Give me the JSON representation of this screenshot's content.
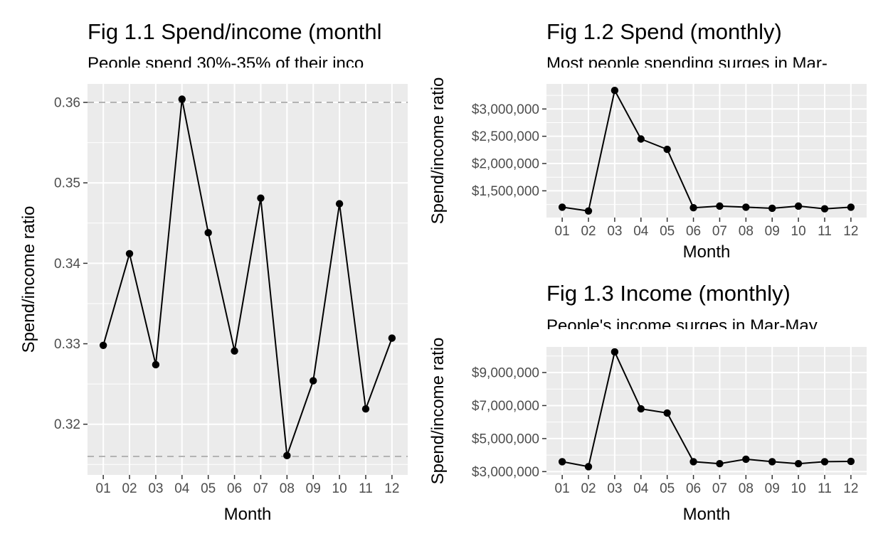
{
  "chart_data": [
    {
      "id": "fig11",
      "type": "line",
      "title": "Fig 1.1 Spend/income (monthl",
      "subtitle": "People spend 30%-35% of their inco",
      "xlabel": "Month",
      "ylabel": "Spend/income ratio",
      "categories": [
        "01",
        "02",
        "03",
        "04",
        "05",
        "06",
        "07",
        "08",
        "09",
        "10",
        "11",
        "12"
      ],
      "values": [
        0.3298,
        0.3412,
        0.3274,
        0.3604,
        0.3438,
        0.3291,
        0.3481,
        0.3161,
        0.3254,
        0.3474,
        0.3219,
        0.3307
      ],
      "ylim": [
        0.3137,
        0.3623
      ],
      "yticks": [
        0.32,
        0.33,
        0.34,
        0.35,
        0.36
      ],
      "yticklabels": [
        "0.32",
        "0.33",
        "0.34",
        "0.35",
        "0.36"
      ],
      "reference_lines": [
        0.316,
        0.36
      ],
      "grid": true,
      "legend": "none"
    },
    {
      "id": "fig12",
      "type": "line",
      "title": "Fig 1.2 Spend (monthly)",
      "subtitle": "Most people spending surges in Mar-",
      "xlabel": "Month",
      "ylabel": "Spend/income ratio",
      "categories": [
        "01",
        "02",
        "03",
        "04",
        "05",
        "06",
        "07",
        "08",
        "09",
        "10",
        "11",
        "12"
      ],
      "values": [
        1200000,
        1130000,
        3340000,
        2450000,
        2260000,
        1190000,
        1220000,
        1200000,
        1180000,
        1220000,
        1170000,
        1200000
      ],
      "ylim": [
        1010000,
        3460000
      ],
      "yticks": [
        1500000,
        2000000,
        2500000,
        3000000
      ],
      "yticklabels": [
        "$1,500,000",
        "$2,000,000",
        "$2,500,000",
        "$3,000,000"
      ],
      "grid": true,
      "legend": "none"
    },
    {
      "id": "fig13",
      "type": "line",
      "title": "Fig 1.3 Income (monthly)",
      "subtitle": "People's income surges in Mar-May",
      "xlabel": "Month",
      "ylabel": "Spend/income ratio",
      "categories": [
        "01",
        "02",
        "03",
        "04",
        "05",
        "06",
        "07",
        "08",
        "09",
        "10",
        "11",
        "12"
      ],
      "values": [
        3600000,
        3300000,
        10250000,
        6800000,
        6550000,
        3600000,
        3480000,
        3750000,
        3600000,
        3480000,
        3600000,
        3620000
      ],
      "ylim": [
        2800000,
        10550000
      ],
      "yticks": [
        3000000,
        5000000,
        7000000,
        9000000
      ],
      "yticklabels": [
        "$3,000,000",
        "$5,000,000",
        "$7,000,000",
        "$9,000,000"
      ],
      "grid": true,
      "legend": "none"
    }
  ]
}
